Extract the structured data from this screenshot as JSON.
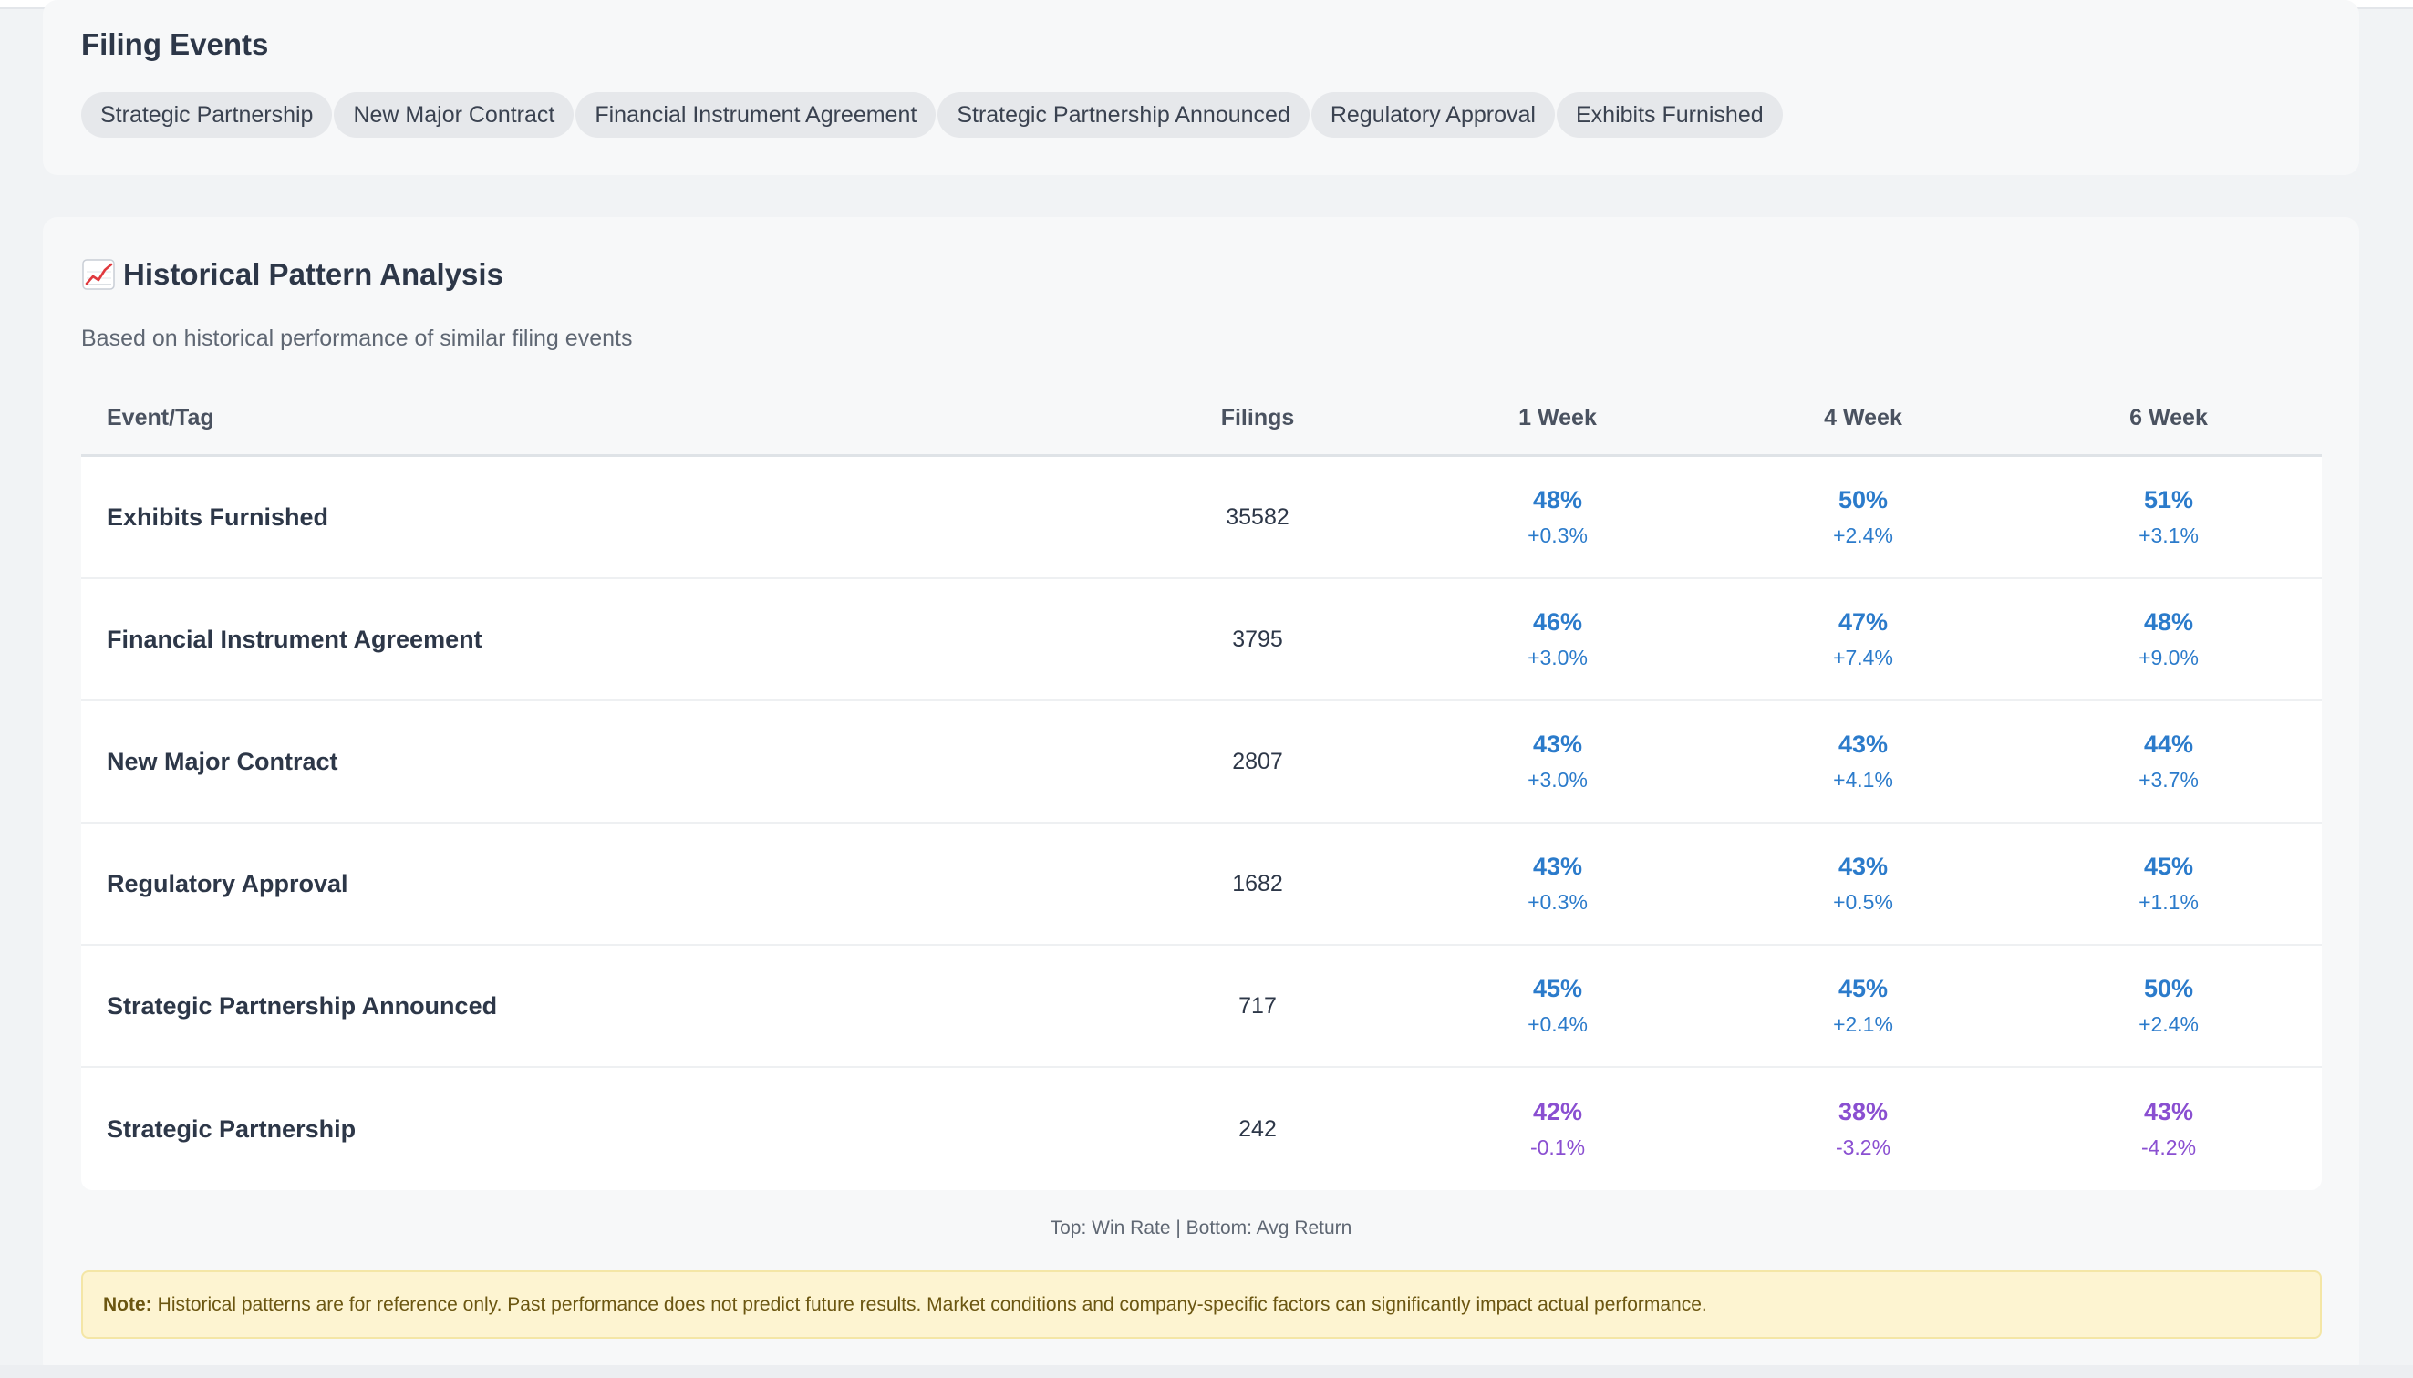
{
  "filing_events": {
    "title": "Filing Events",
    "tags": [
      "Strategic Partnership",
      "New Major Contract",
      "Financial Instrument Agreement",
      "Strategic Partnership Announced",
      "Regulatory Approval",
      "Exhibits Furnished"
    ]
  },
  "historical": {
    "icon": "chart-increasing-icon",
    "title": "Historical Pattern Analysis",
    "subtitle": "Based on historical performance of similar filing events",
    "columns": [
      "Event/Tag",
      "Filings",
      "1 Week",
      "4 Week",
      "6 Week"
    ],
    "rows": [
      {
        "event": "Exhibits Furnished",
        "filings": "35582",
        "w1": {
          "win": "48%",
          "ret": "+0.3%",
          "tone": "pos"
        },
        "w4": {
          "win": "50%",
          "ret": "+2.4%",
          "tone": "pos"
        },
        "w6": {
          "win": "51%",
          "ret": "+3.1%",
          "tone": "pos"
        }
      },
      {
        "event": "Financial Instrument Agreement",
        "filings": "3795",
        "w1": {
          "win": "46%",
          "ret": "+3.0%",
          "tone": "pos"
        },
        "w4": {
          "win": "47%",
          "ret": "+7.4%",
          "tone": "pos"
        },
        "w6": {
          "win": "48%",
          "ret": "+9.0%",
          "tone": "pos"
        }
      },
      {
        "event": "New Major Contract",
        "filings": "2807",
        "w1": {
          "win": "43%",
          "ret": "+3.0%",
          "tone": "pos"
        },
        "w4": {
          "win": "43%",
          "ret": "+4.1%",
          "tone": "pos"
        },
        "w6": {
          "win": "44%",
          "ret": "+3.7%",
          "tone": "pos"
        }
      },
      {
        "event": "Regulatory Approval",
        "filings": "1682",
        "w1": {
          "win": "43%",
          "ret": "+0.3%",
          "tone": "pos"
        },
        "w4": {
          "win": "43%",
          "ret": "+0.5%",
          "tone": "pos"
        },
        "w6": {
          "win": "45%",
          "ret": "+1.1%",
          "tone": "pos"
        }
      },
      {
        "event": "Strategic Partnership Announced",
        "filings": "717",
        "w1": {
          "win": "45%",
          "ret": "+0.4%",
          "tone": "pos"
        },
        "w4": {
          "win": "45%",
          "ret": "+2.1%",
          "tone": "pos"
        },
        "w6": {
          "win": "50%",
          "ret": "+2.4%",
          "tone": "pos"
        }
      },
      {
        "event": "Strategic Partnership",
        "filings": "242",
        "w1": {
          "win": "42%",
          "ret": "-0.1%",
          "tone": "neg"
        },
        "w4": {
          "win": "38%",
          "ret": "-3.2%",
          "tone": "neg"
        },
        "w6": {
          "win": "43%",
          "ret": "-4.2%",
          "tone": "neg"
        }
      }
    ],
    "legend": "Top: Win Rate | Bottom: Avg Return",
    "note_label": "Note:",
    "note_text": "Historical patterns are for reference only. Past performance does not predict future results. Market conditions and company-specific factors can significantly impact actual performance."
  },
  "colors": {
    "positive": "#2b7bcb",
    "negative": "#8a4fd1",
    "note_background": "#fdf4d1"
  }
}
